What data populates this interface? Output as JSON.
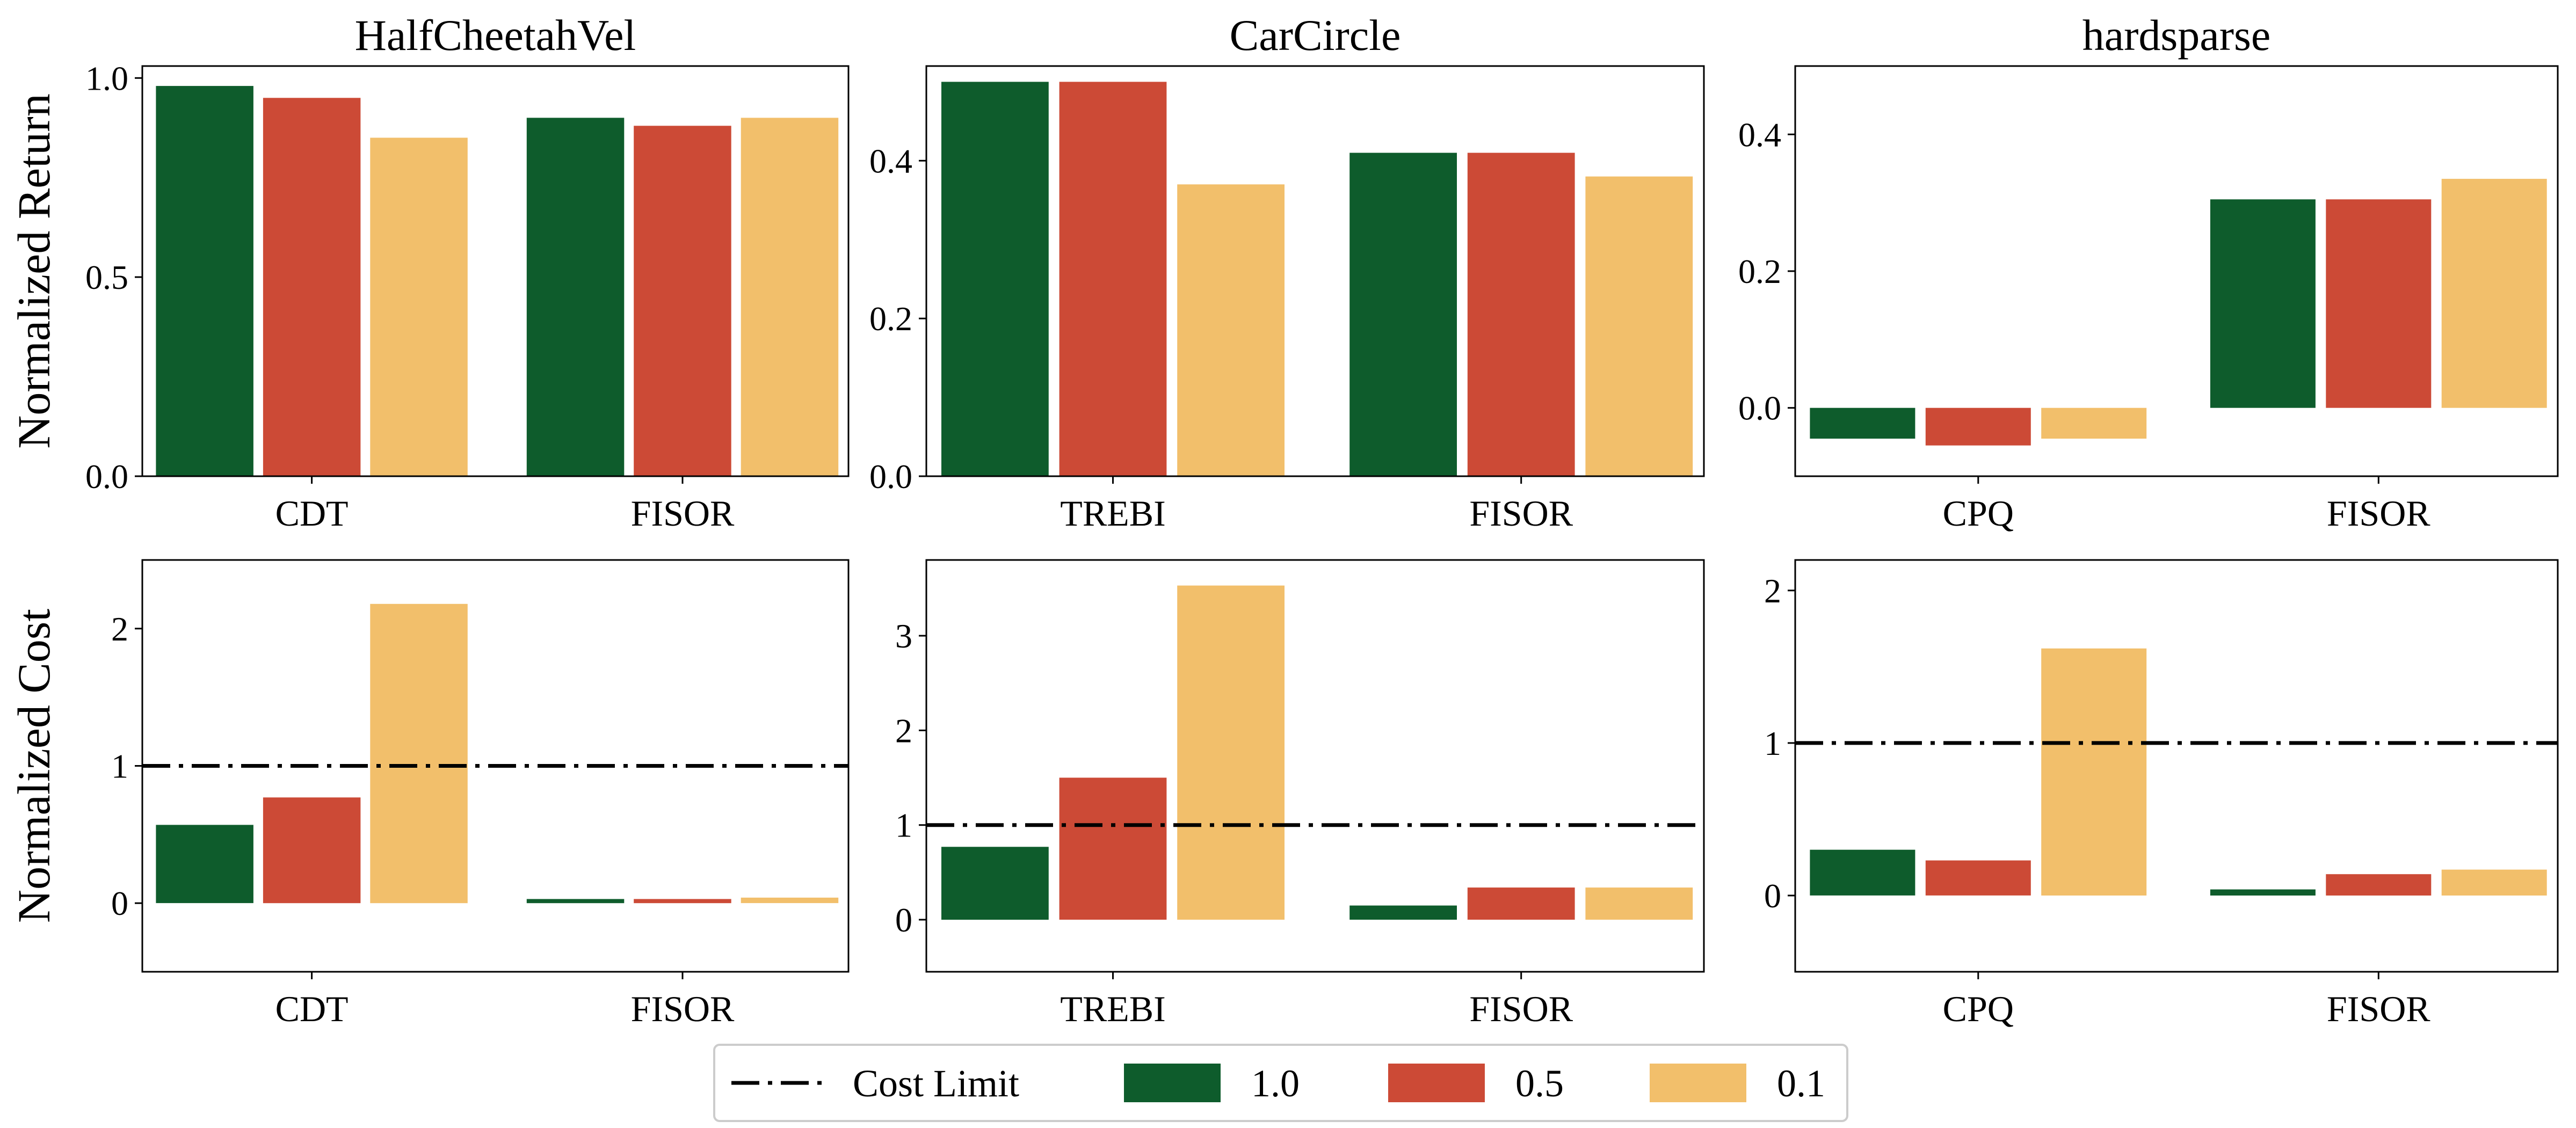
{
  "colors": {
    "1.0": "#0e5c2c",
    "0.5": "#cc4a36",
    "0.1": "#f2bf6b"
  },
  "legend": {
    "placement": "bottom-center",
    "items": [
      {
        "label": "Cost Limit",
        "kind": "line"
      },
      {
        "label": "1.0",
        "kind": "bar",
        "color": "#0e5c2c"
      },
      {
        "label": "0.5",
        "kind": "bar",
        "color": "#cc4a36"
      },
      {
        "label": "0.1",
        "kind": "bar",
        "color": "#f2bf6b"
      }
    ]
  },
  "chart_data": [
    {
      "id": "halfcheetah-return",
      "type": "bar",
      "title": "HalfCheetahVel",
      "ylabel": "Normalized Return",
      "xlabel": "",
      "categories": [
        "CDT",
        "FISOR"
      ],
      "ylim": [
        0,
        1.03
      ],
      "yticks": [
        0.0,
        0.5,
        1.0
      ],
      "ytick_labels": [
        "0.0",
        "0.5",
        "1.0"
      ],
      "cost_limit": null,
      "series": [
        {
          "name": "1.0",
          "values": [
            0.98,
            0.9
          ]
        },
        {
          "name": "0.5",
          "values": [
            0.95,
            0.88
          ]
        },
        {
          "name": "0.1",
          "values": [
            0.85,
            0.9
          ]
        }
      ]
    },
    {
      "id": "carcircle-return",
      "type": "bar",
      "title": "CarCircle",
      "ylabel": "",
      "xlabel": "",
      "categories": [
        "TREBI",
        "FISOR"
      ],
      "ylim": [
        0,
        0.52
      ],
      "yticks": [
        0.0,
        0.2,
        0.4
      ],
      "ytick_labels": [
        "0.0",
        "0.2",
        "0.4"
      ],
      "cost_limit": null,
      "series": [
        {
          "name": "1.0",
          "values": [
            0.5,
            0.41
          ]
        },
        {
          "name": "0.5",
          "values": [
            0.5,
            0.41
          ]
        },
        {
          "name": "0.1",
          "values": [
            0.37,
            0.38
          ]
        }
      ]
    },
    {
      "id": "hardsparse-return",
      "type": "bar",
      "title": "hardsparse",
      "ylabel": "",
      "xlabel": "",
      "categories": [
        "CPQ",
        "FISOR"
      ],
      "ylim": [
        -0.1,
        0.5
      ],
      "yticks": [
        0.0,
        0.2,
        0.4
      ],
      "ytick_labels": [
        "0.0",
        "0.2",
        "0.4"
      ],
      "cost_limit": null,
      "series": [
        {
          "name": "1.0",
          "values": [
            -0.045,
            0.305
          ]
        },
        {
          "name": "0.5",
          "values": [
            -0.055,
            0.305
          ]
        },
        {
          "name": "0.1",
          "values": [
            -0.045,
            0.335
          ]
        }
      ]
    },
    {
      "id": "halfcheetah-cost",
      "type": "bar",
      "title": "",
      "ylabel": "Normalized Cost",
      "xlabel": "",
      "categories": [
        "CDT",
        "FISOR"
      ],
      "ylim": [
        -0.5,
        2.5
      ],
      "yticks": [
        0,
        1,
        2
      ],
      "ytick_labels": [
        "0",
        "1",
        "2"
      ],
      "cost_limit": 1.0,
      "series": [
        {
          "name": "1.0",
          "values": [
            0.57,
            0.03
          ]
        },
        {
          "name": "0.5",
          "values": [
            0.77,
            0.03
          ]
        },
        {
          "name": "0.1",
          "values": [
            2.18,
            0.04
          ]
        }
      ]
    },
    {
      "id": "carcircle-cost",
      "type": "bar",
      "title": "",
      "ylabel": "",
      "xlabel": "",
      "categories": [
        "TREBI",
        "FISOR"
      ],
      "ylim": [
        -0.55,
        3.8
      ],
      "yticks": [
        0,
        1,
        2,
        3
      ],
      "ytick_labels": [
        "0",
        "1",
        "2",
        "3"
      ],
      "cost_limit": 1.0,
      "series": [
        {
          "name": "1.0",
          "values": [
            0.77,
            0.15
          ]
        },
        {
          "name": "0.5",
          "values": [
            1.5,
            0.34
          ]
        },
        {
          "name": "0.1",
          "values": [
            3.53,
            0.34
          ]
        }
      ]
    },
    {
      "id": "hardsparse-cost",
      "type": "bar",
      "title": "",
      "ylabel": "",
      "xlabel": "",
      "categories": [
        "CPQ",
        "FISOR"
      ],
      "ylim": [
        -0.5,
        2.2
      ],
      "yticks": [
        0,
        1,
        2
      ],
      "ytick_labels": [
        "0",
        "1",
        "2"
      ],
      "cost_limit": 1.0,
      "series": [
        {
          "name": "1.0",
          "values": [
            0.3,
            0.04
          ]
        },
        {
          "name": "0.5",
          "values": [
            0.23,
            0.14
          ]
        },
        {
          "name": "0.1",
          "values": [
            1.62,
            0.17
          ]
        }
      ]
    }
  ]
}
